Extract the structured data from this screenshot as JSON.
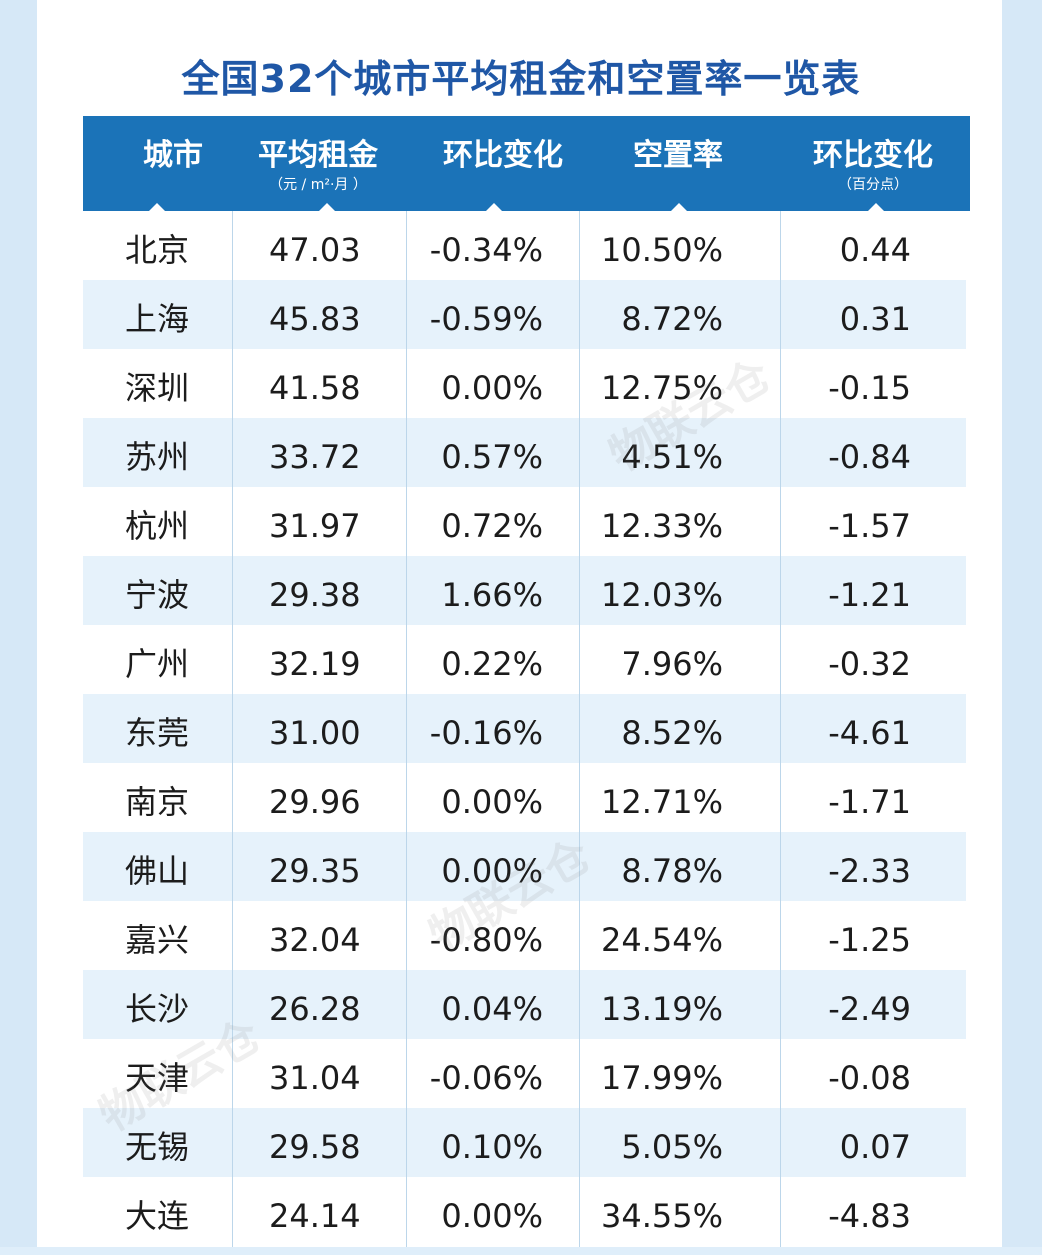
{
  "title": "全国32个城市平均租金和空置率一览表",
  "colors": {
    "header_bg": "#1b73b8",
    "title": "#1f57a6",
    "alt_row": "#e6f2fb"
  },
  "headers": [
    {
      "main": "城市",
      "sub": ""
    },
    {
      "main": "平均租金",
      "sub": "（元 / m²·月 ）"
    },
    {
      "main": "环比变化",
      "sub": ""
    },
    {
      "main": "空置率",
      "sub": ""
    },
    {
      "main": "环比变化",
      "sub": "（百分点）"
    }
  ],
  "rows": [
    {
      "city": "北京",
      "rent": "47.03",
      "rent_change": "-0.34%",
      "vacancy": "10.50%",
      "vacancy_change": "0.44"
    },
    {
      "city": "上海",
      "rent": "45.83",
      "rent_change": "-0.59%",
      "vacancy": "8.72%",
      "vacancy_change": "0.31"
    },
    {
      "city": "深圳",
      "rent": "41.58",
      "rent_change": "0.00%",
      "vacancy": "12.75%",
      "vacancy_change": "-0.15"
    },
    {
      "city": "苏州",
      "rent": "33.72",
      "rent_change": "0.57%",
      "vacancy": "4.51%",
      "vacancy_change": "-0.84"
    },
    {
      "city": "杭州",
      "rent": "31.97",
      "rent_change": "0.72%",
      "vacancy": "12.33%",
      "vacancy_change": "-1.57"
    },
    {
      "city": "宁波",
      "rent": "29.38",
      "rent_change": "1.66%",
      "vacancy": "12.03%",
      "vacancy_change": "-1.21"
    },
    {
      "city": "广州",
      "rent": "32.19",
      "rent_change": "0.22%",
      "vacancy": "7.96%",
      "vacancy_change": "-0.32"
    },
    {
      "city": "东莞",
      "rent": "31.00",
      "rent_change": "-0.16%",
      "vacancy": "8.52%",
      "vacancy_change": "-4.61"
    },
    {
      "city": "南京",
      "rent": "29.96",
      "rent_change": "0.00%",
      "vacancy": "12.71%",
      "vacancy_change": "-1.71"
    },
    {
      "city": "佛山",
      "rent": "29.35",
      "rent_change": "0.00%",
      "vacancy": "8.78%",
      "vacancy_change": "-2.33"
    },
    {
      "city": "嘉兴",
      "rent": "32.04",
      "rent_change": "-0.80%",
      "vacancy": "24.54%",
      "vacancy_change": "-1.25"
    },
    {
      "city": "长沙",
      "rent": "26.28",
      "rent_change": "0.04%",
      "vacancy": "13.19%",
      "vacancy_change": "-2.49"
    },
    {
      "city": "天津",
      "rent": "31.04",
      "rent_change": "-0.06%",
      "vacancy": "17.99%",
      "vacancy_change": "-0.08"
    },
    {
      "city": "无锡",
      "rent": "29.58",
      "rent_change": "0.10%",
      "vacancy": "5.05%",
      "vacancy_change": "0.07"
    },
    {
      "city": "大连",
      "rent": "24.14",
      "rent_change": "0.00%",
      "vacancy": "34.55%",
      "vacancy_change": "-4.83"
    }
  ],
  "watermark": "物联云仓"
}
